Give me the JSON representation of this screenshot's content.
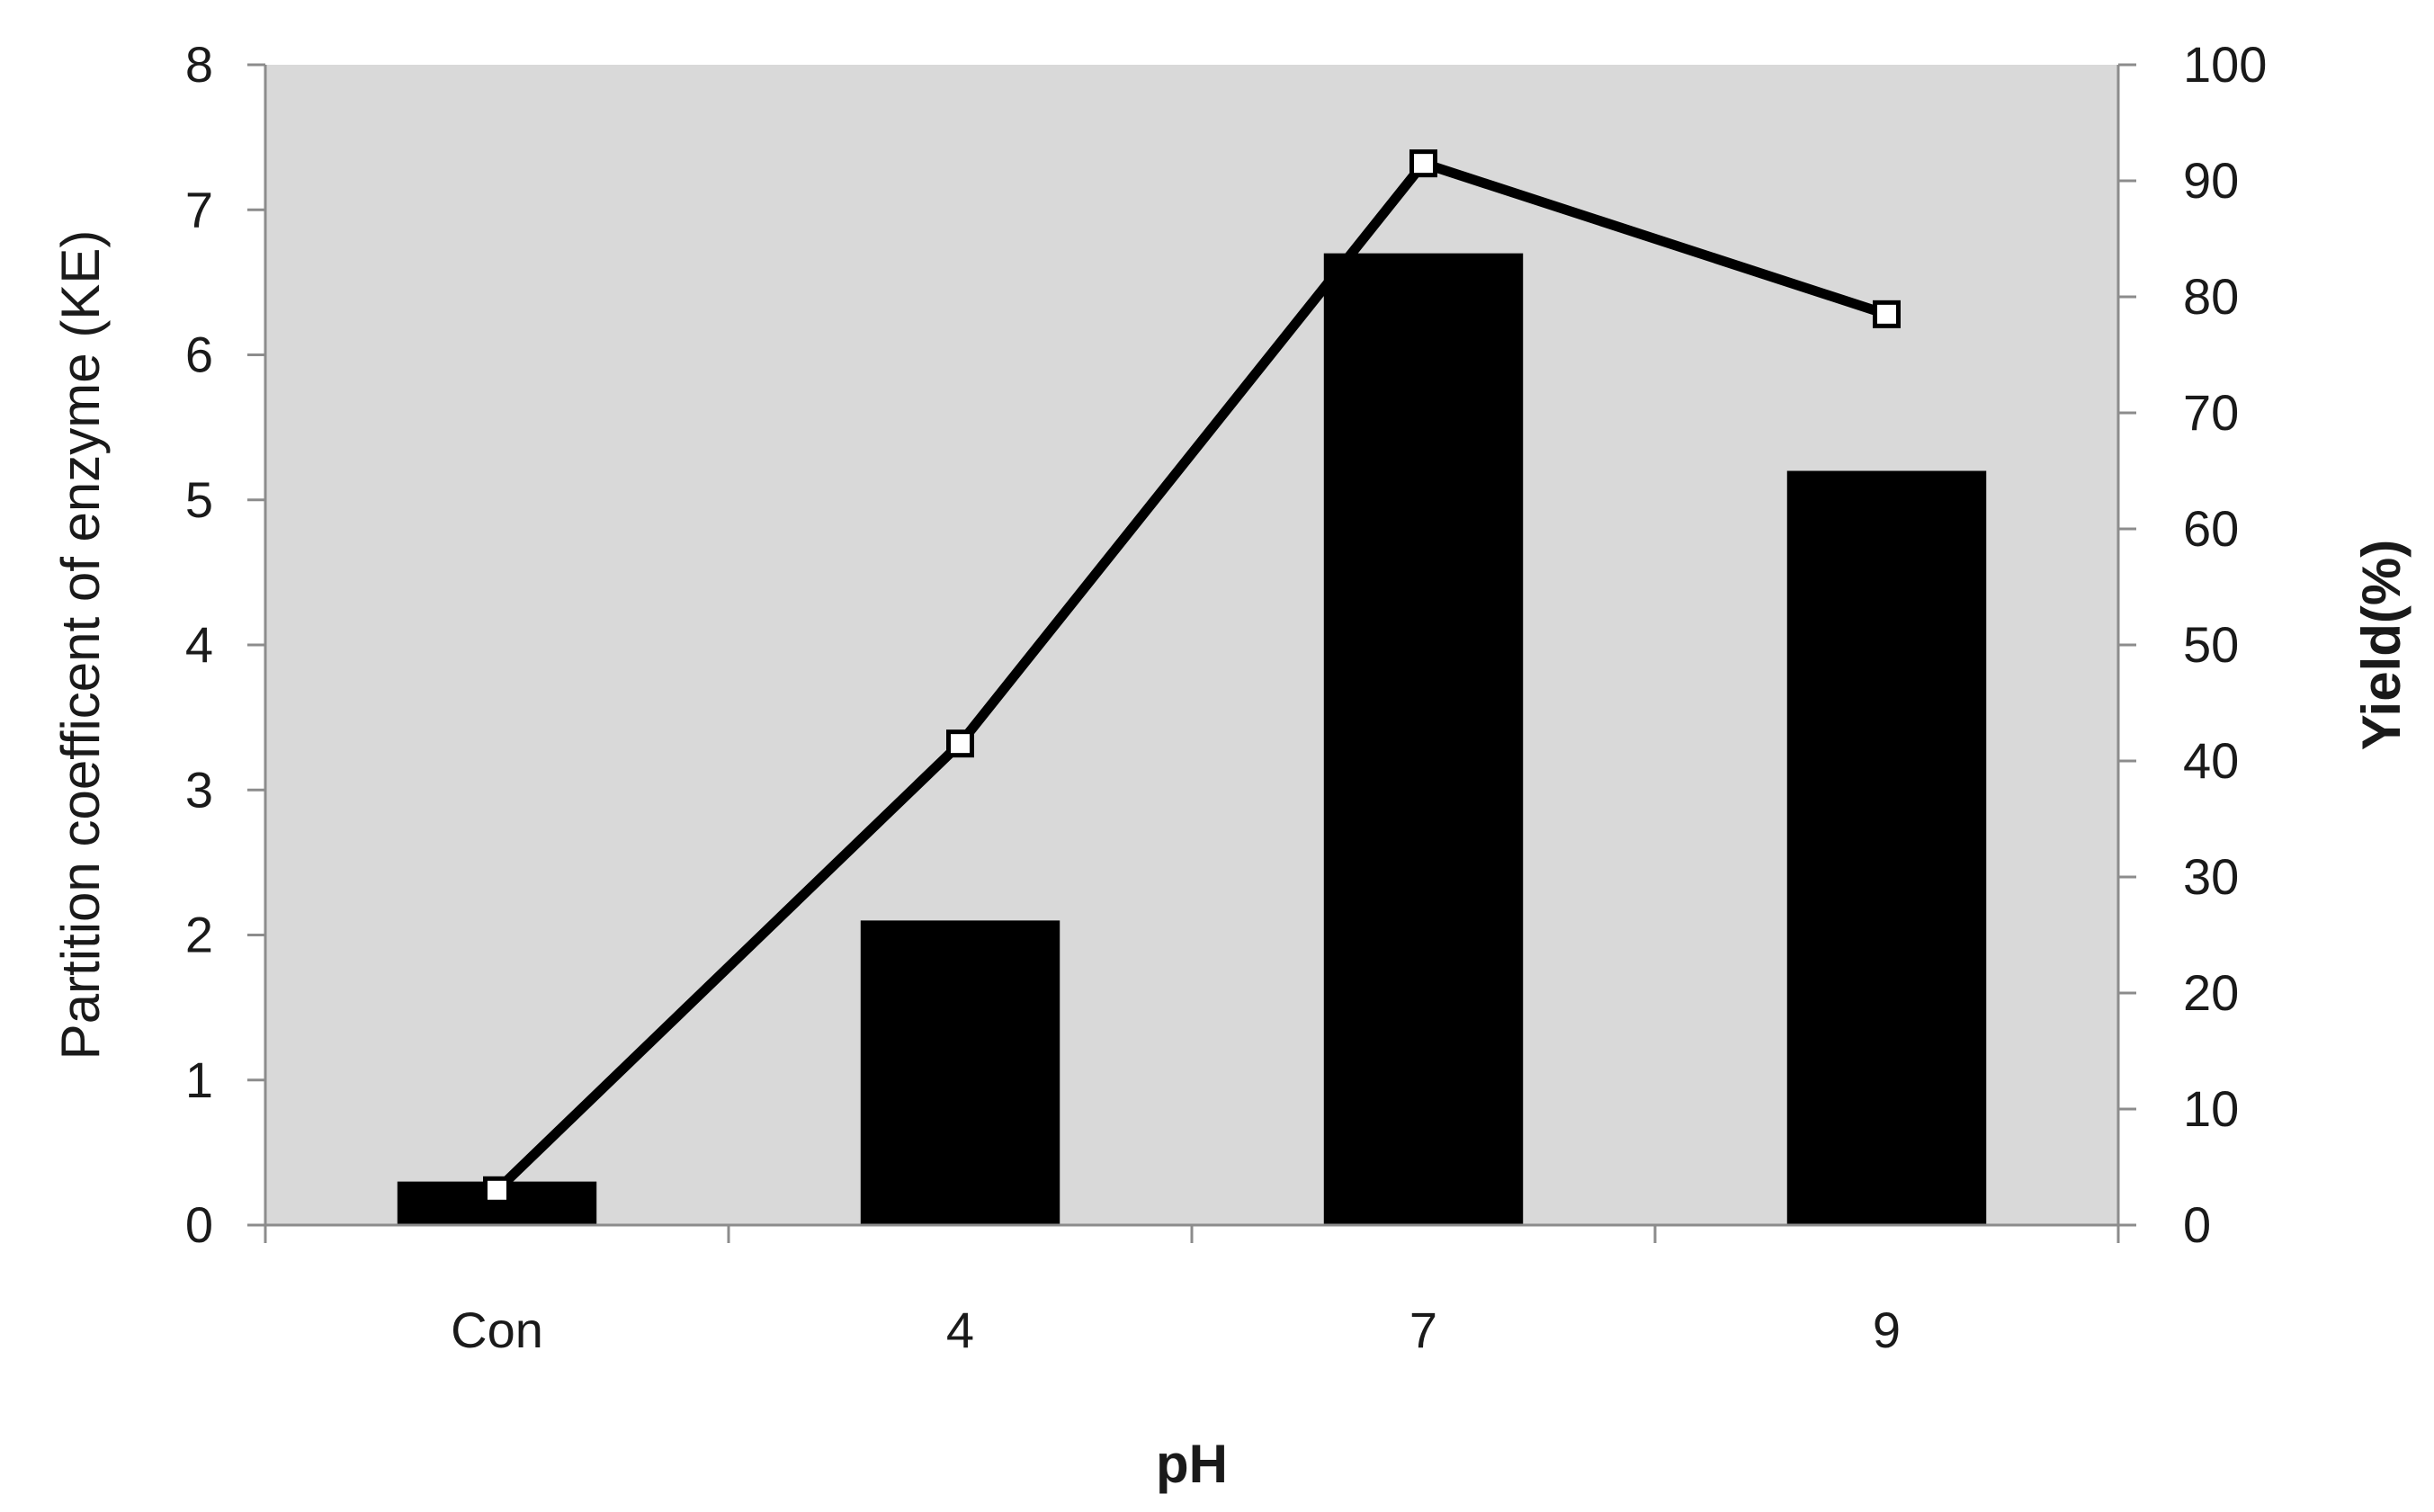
{
  "chart_data": {
    "type": "bar",
    "categories": [
      "Con",
      "4",
      "7",
      "9"
    ],
    "xlabel": "pH",
    "ylabel": "Partition coefficent of enzyme (KE)",
    "y2label": "Yield(%)",
    "ylim": [
      0,
      8
    ],
    "y2lim": [
      0,
      100
    ],
    "yticks": [
      "0",
      "1",
      "2",
      "3",
      "4",
      "5",
      "6",
      "7",
      "8"
    ],
    "y2ticks": [
      "0",
      "10",
      "20",
      "30",
      "40",
      "50",
      "60",
      "70",
      "80",
      "90",
      "100"
    ],
    "grid": false,
    "legend": "none",
    "series": [
      {
        "kind": "bar",
        "axis": "left",
        "values": [
          0.3,
          2.1,
          6.7,
          5.2
        ]
      },
      {
        "kind": "line",
        "axis": "right",
        "values": [
          3,
          41.5,
          91.5,
          78.5
        ]
      }
    ],
    "colors": {
      "plot_background": "#d9d9d9",
      "bar": "#000000",
      "line": "#000000",
      "marker_fill": "#ffffff"
    }
  }
}
